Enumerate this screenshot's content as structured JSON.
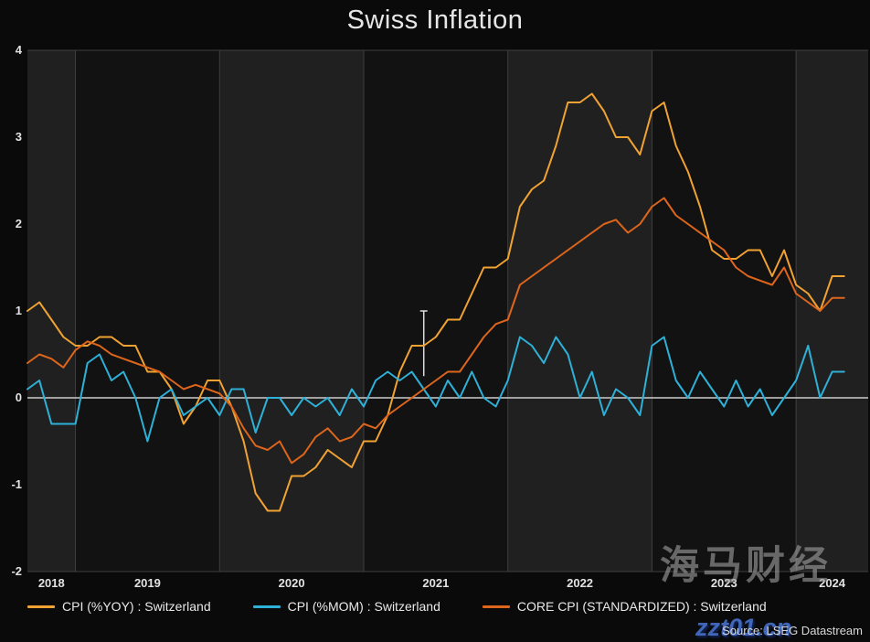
{
  "chart_data": {
    "type": "line",
    "title": "Swiss Inflation",
    "x_start": "2018-09",
    "frequency": "monthly",
    "x_tick_labels": [
      "2018",
      "2019",
      "2020",
      "2021",
      "2022",
      "2023",
      "2024"
    ],
    "ylim": [
      -2,
      4
    ],
    "y_ticks": [
      4,
      3,
      2,
      1,
      0,
      -1,
      -2
    ],
    "grid": "vertical-year-gridlines-with-alternating-bands",
    "legend_position": "bottom",
    "series": [
      {
        "name": "CPI (%YOY) : Switzerland",
        "slug": "cpi-yoy",
        "color": "#f0a232",
        "values": [
          1.0,
          1.1,
          0.9,
          0.7,
          0.6,
          0.6,
          0.7,
          0.7,
          0.6,
          0.6,
          0.3,
          0.3,
          0.1,
          -0.3,
          -0.1,
          0.2,
          0.2,
          -0.1,
          -0.5,
          -1.1,
          -1.3,
          -1.3,
          -0.9,
          -0.9,
          -0.8,
          -0.6,
          -0.7,
          -0.8,
          -0.5,
          -0.5,
          -0.2,
          0.3,
          0.6,
          0.6,
          0.7,
          0.9,
          0.9,
          1.2,
          1.5,
          1.5,
          1.6,
          2.2,
          2.4,
          2.5,
          2.9,
          3.4,
          3.4,
          3.5,
          3.3,
          3.0,
          3.0,
          2.8,
          3.3,
          3.4,
          2.9,
          2.6,
          2.2,
          1.7,
          1.6,
          1.6,
          1.7,
          1.7,
          1.4,
          1.7,
          1.3,
          1.2,
          1.0,
          1.4,
          1.4
        ]
      },
      {
        "name": "CPI (%MOM) : Switzerland",
        "slug": "cpi-mom",
        "color": "#2eb1d8",
        "values": [
          0.1,
          0.2,
          -0.3,
          -0.3,
          -0.3,
          0.4,
          0.5,
          0.2,
          0.3,
          0.0,
          -0.5,
          0.0,
          0.1,
          -0.2,
          -0.1,
          0.0,
          -0.2,
          0.1,
          0.1,
          -0.4,
          0.0,
          0.0,
          -0.2,
          0.0,
          -0.1,
          0.0,
          -0.2,
          0.1,
          -0.1,
          0.2,
          0.3,
          0.2,
          0.3,
          0.1,
          -0.1,
          0.2,
          0.0,
          0.3,
          0.0,
          -0.1,
          0.2,
          0.7,
          0.6,
          0.4,
          0.7,
          0.5,
          0.0,
          0.3,
          -0.2,
          0.1,
          0.0,
          -0.2,
          0.6,
          0.7,
          0.2,
          0.0,
          0.3,
          0.1,
          -0.1,
          0.2,
          -0.1,
          0.1,
          -0.2,
          0.0,
          0.2,
          0.6,
          0.0,
          0.3,
          0.3
        ]
      },
      {
        "name": "CORE CPI (STANDARDIZED) : Switzerland",
        "slug": "core-cpi",
        "color": "#dd651c",
        "values": [
          0.4,
          0.5,
          0.45,
          0.35,
          0.55,
          0.65,
          0.6,
          0.5,
          0.45,
          0.4,
          0.35,
          0.3,
          0.2,
          0.1,
          0.15,
          0.1,
          0.05,
          -0.1,
          -0.35,
          -0.55,
          -0.6,
          -0.5,
          -0.75,
          -0.65,
          -0.45,
          -0.35,
          -0.5,
          -0.45,
          -0.3,
          -0.35,
          -0.2,
          -0.1,
          0.0,
          0.1,
          0.2,
          0.3,
          0.3,
          0.5,
          0.7,
          0.85,
          0.9,
          1.3,
          1.4,
          1.5,
          1.6,
          1.7,
          1.8,
          1.9,
          2.0,
          2.05,
          1.9,
          2.0,
          2.2,
          2.3,
          2.1,
          2.0,
          1.9,
          1.8,
          1.7,
          1.5,
          1.4,
          1.35,
          1.3,
          1.5,
          1.2,
          1.1,
          1.0,
          1.15,
          1.15
        ]
      }
    ],
    "annotation_marker": {
      "month": "2021-06",
      "y_from": 0.25,
      "y_to": 1.0
    }
  },
  "colors": {
    "background": "#0a0a0a",
    "band_light": "#202020",
    "band_dark": "#121212",
    "grid": "#3f3f3f",
    "zero_line": "#cccccc",
    "axis_text": "#e2e2e2",
    "marker": "#dddddd"
  },
  "source": "Source: LSEG Datastream",
  "watermark": {
    "line1": "海马财经",
    "line2": "zzt01.cn"
  }
}
